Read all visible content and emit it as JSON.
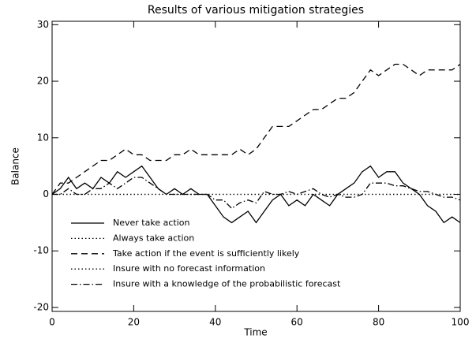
{
  "chart_data": {
    "type": "line",
    "title": "Results of various mitigation strategies",
    "xlabel": "Time",
    "ylabel": "Balance",
    "x": [
      0,
      2,
      4,
      6,
      8,
      10,
      12,
      14,
      16,
      18,
      20,
      22,
      24,
      26,
      28,
      30,
      32,
      34,
      36,
      38,
      40,
      42,
      44,
      46,
      48,
      50,
      52,
      54,
      56,
      58,
      60,
      62,
      64,
      66,
      68,
      70,
      72,
      74,
      76,
      78,
      80,
      82,
      84,
      86,
      88,
      90,
      92,
      94,
      96,
      98,
      100
    ],
    "series": [
      {
        "name": "Never take action",
        "color": "#000000",
        "dash": "solid",
        "values": [
          0,
          1,
          3,
          1,
          2,
          1,
          3,
          2,
          4,
          3,
          4,
          5,
          3,
          1,
          0,
          1,
          0,
          1,
          0,
          0,
          -2,
          -4,
          -5,
          -4,
          -3,
          -5,
          -3,
          -1,
          0,
          -2,
          -1,
          -2,
          0,
          -1,
          -2,
          0,
          1,
          2,
          4,
          5,
          3,
          4,
          4,
          2,
          1,
          0,
          -2,
          -3,
          -5,
          -4,
          -5
        ]
      },
      {
        "name": "Always take action",
        "color": "#000000",
        "dash": "dotted",
        "values": [
          0,
          0,
          0,
          0,
          0,
          0,
          0,
          0,
          0,
          0,
          0,
          0,
          0,
          0,
          0,
          0,
          0,
          0,
          0,
          0,
          0,
          0,
          0,
          0,
          0,
          0,
          0,
          0,
          0,
          0,
          0,
          0,
          0,
          0,
          0,
          0,
          0,
          0,
          0,
          0,
          0,
          0,
          0,
          0,
          0,
          0,
          0,
          0,
          0,
          0,
          0
        ]
      },
      {
        "name": "Take action if the event is sufficiently likely",
        "color": "#000000",
        "dash": "dashed",
        "values": [
          0,
          2,
          2,
          3,
          4,
          5,
          6,
          6,
          7,
          8,
          7,
          7,
          6,
          6,
          6,
          7,
          7,
          8,
          7,
          7,
          7,
          7,
          7,
          8,
          7,
          8,
          10,
          12,
          12,
          12,
          13,
          14,
          15,
          15,
          16,
          17,
          17,
          18,
          20,
          22,
          21,
          22,
          23,
          23,
          22,
          21,
          22,
          22,
          22,
          22,
          23
        ]
      },
      {
        "name": "Insure with no forecast information",
        "color": "#000000",
        "dash": "dotted",
        "values": [
          0,
          0,
          0,
          0,
          0,
          0,
          0,
          0,
          0,
          0,
          0,
          0,
          0,
          0,
          0,
          0,
          0,
          0,
          0,
          0,
          0,
          0,
          0,
          0,
          0,
          0,
          0,
          0,
          0,
          0,
          0,
          0,
          0,
          0,
          0,
          0,
          0,
          0,
          0,
          0,
          0,
          0,
          0,
          0,
          0,
          0,
          0,
          0,
          0,
          0,
          0
        ]
      },
      {
        "name": "Insure with a knowledge of the probabilistic forecast",
        "color": "#000000",
        "dash": "dashdot",
        "values": [
          0,
          0,
          1,
          0,
          0,
          1,
          1,
          2,
          1,
          2,
          3,
          3,
          2,
          1,
          0,
          0,
          0,
          0,
          0,
          0,
          -1,
          -1,
          -2.5,
          -1.5,
          -1,
          -1.5,
          0.5,
          0,
          0,
          0.5,
          0,
          0.5,
          1,
          0,
          -0.5,
          0,
          -0.5,
          -0.5,
          0,
          2,
          2,
          2,
          1.5,
          1.5,
          1,
          0.5,
          0.5,
          0,
          -0.5,
          -0.5,
          -1
        ]
      }
    ],
    "xlim": [
      0,
      100
    ],
    "xticks": [
      0,
      20,
      40,
      60,
      80,
      100
    ],
    "ylim": [
      -20.7,
      30.6
    ],
    "yticks": [
      -20,
      -10,
      0,
      10,
      20,
      30
    ],
    "legend": "lower-left"
  }
}
